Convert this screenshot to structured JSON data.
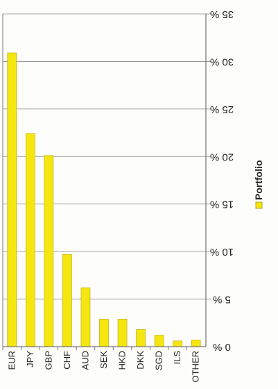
{
  "chart_data": {
    "type": "bar",
    "categories": [
      "EUR",
      "JPY",
      "GBP",
      "CHF",
      "AUD",
      "SEK",
      "HKD",
      "DKK",
      "SGD",
      "ILS",
      "OTHER"
    ],
    "series": [
      {
        "name": "Portfolio",
        "color": "#f5e60f",
        "values": [
          30.9,
          22.4,
          20.1,
          9.7,
          6.2,
          2.9,
          2.9,
          1.8,
          1.2,
          0.6,
          0.7
        ]
      }
    ],
    "ylim": [
      0,
      35
    ],
    "ytick_values": [
      0,
      5,
      10,
      15,
      20,
      25,
      30,
      35
    ],
    "ytick_labels": [
      "0 %",
      "5 %",
      "10 %",
      "15 %",
      "20 %",
      "25 %",
      "30 %",
      "35 %"
    ],
    "grid": true,
    "legend_position": "right",
    "orientation_note": "scanned page rotated; value axis labels appear upside down on right"
  }
}
